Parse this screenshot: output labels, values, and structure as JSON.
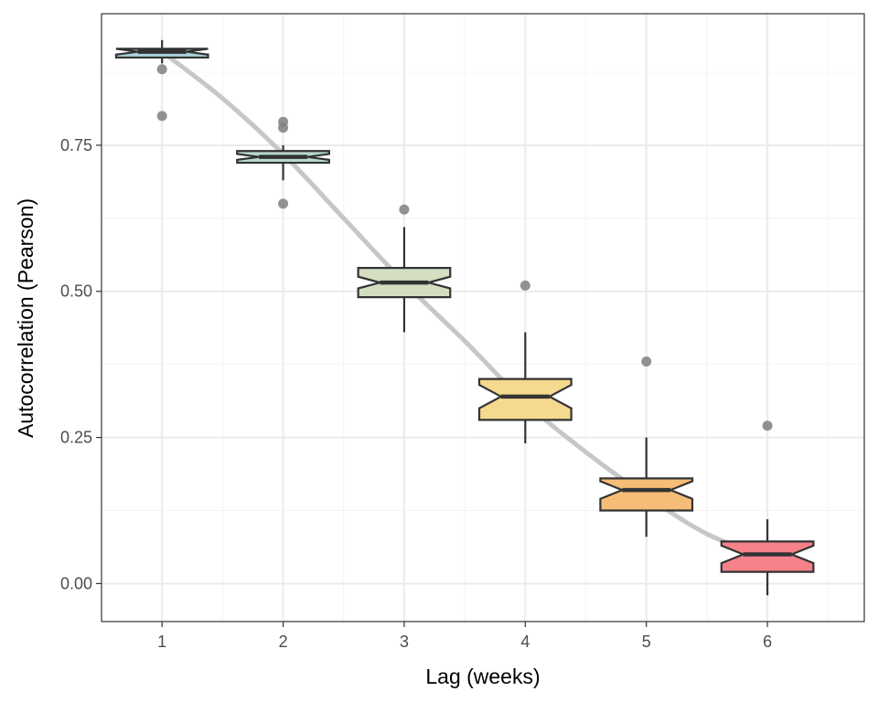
{
  "chart_data": {
    "type": "boxplot",
    "xlabel": "Lag (weeks)",
    "ylabel": "Autocorrelation (Pearson)",
    "categories": [
      "1",
      "2",
      "3",
      "4",
      "5",
      "6"
    ],
    "xlim": [
      0.5,
      6.8
    ],
    "ylim": [
      -0.065,
      0.975
    ],
    "y_ticks": [
      0.0,
      0.25,
      0.5,
      0.75
    ],
    "y_tick_labels": [
      "0.00",
      "0.25",
      "0.50",
      "0.75"
    ],
    "grid": true,
    "notched": true,
    "boxes": [
      {
        "lag": 1,
        "whisker_low": 0.89,
        "q1": 0.9,
        "median": 0.91,
        "q3": 0.915,
        "whisker_high": 0.93,
        "notch_low": 0.905,
        "notch_high": 0.915,
        "outliers": [
          0.88,
          0.8
        ],
        "fill": "#a9d3dd"
      },
      {
        "lag": 2,
        "whisker_low": 0.69,
        "q1": 0.72,
        "median": 0.73,
        "q3": 0.74,
        "whisker_high": 0.75,
        "notch_low": 0.725,
        "notch_high": 0.735,
        "outliers": [
          0.79,
          0.78,
          0.65
        ],
        "fill": "#b8d8d0"
      },
      {
        "lag": 3,
        "whisker_low": 0.43,
        "q1": 0.49,
        "median": 0.515,
        "q3": 0.54,
        "whisker_high": 0.61,
        "notch_low": 0.505,
        "notch_high": 0.525,
        "outliers": [
          0.64
        ],
        "fill": "#d4dfc2"
      },
      {
        "lag": 4,
        "whisker_low": 0.24,
        "q1": 0.28,
        "median": 0.32,
        "q3": 0.35,
        "whisker_high": 0.43,
        "notch_low": 0.3,
        "notch_high": 0.34,
        "outliers": [
          0.51
        ],
        "fill": "#f4d98e"
      },
      {
        "lag": 5,
        "whisker_low": 0.08,
        "q1": 0.125,
        "median": 0.16,
        "q3": 0.18,
        "whisker_high": 0.25,
        "notch_low": 0.145,
        "notch_high": 0.175,
        "outliers": [
          0.38
        ],
        "fill": "#f5bd78"
      },
      {
        "lag": 6,
        "whisker_low": -0.02,
        "q1": 0.02,
        "median": 0.05,
        "q3": 0.072,
        "whisker_high": 0.11,
        "notch_low": 0.035,
        "notch_high": 0.065,
        "outliers": [
          0.27
        ],
        "fill": "#f6818a"
      }
    ],
    "trend": {
      "x": [
        1,
        1.5,
        2,
        2.5,
        3,
        3.5,
        4,
        4.5,
        5,
        5.5,
        6
      ],
      "y": [
        0.91,
        0.83,
        0.735,
        0.625,
        0.515,
        0.415,
        0.31,
        0.225,
        0.15,
        0.085,
        0.045
      ],
      "color": "#bdbdbd"
    },
    "colors": {
      "panel_border": "#333333",
      "grid_major": "#ebebeb",
      "grid_minor": "#f4f4f4",
      "box_line": "#333333",
      "outlier": "#7f7f7f"
    }
  }
}
